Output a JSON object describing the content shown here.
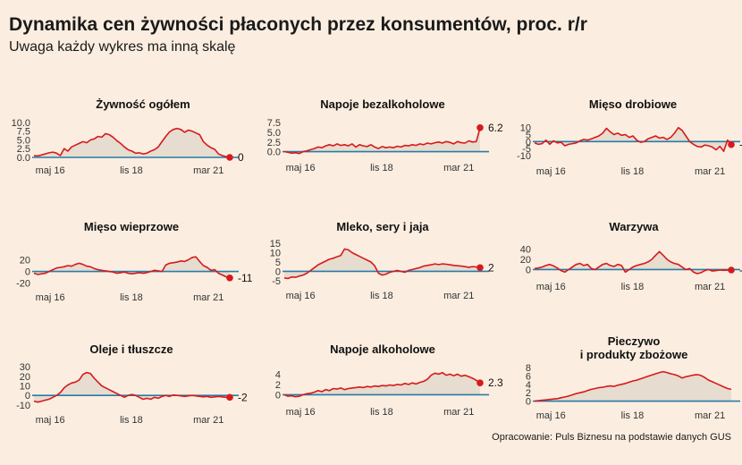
{
  "title": "Dynamika cen żywności płaconych przez konsumentów, proc. r/r",
  "subtitle": "Uwaga każdy wykres ma inną skalę",
  "source": "Opracowanie: Puls Biznesu na podstawie danych GUS",
  "colors": {
    "background": "#fbeee0",
    "line": "#d7191c",
    "area": "#e6dccf",
    "zero_line": "#2a7aa8"
  },
  "chart_data": [
    {
      "type": "area",
      "title": [
        "Żywność ogółem"
      ],
      "x_ticks": [
        "maj 16",
        "lis 18",
        "mar 21"
      ],
      "y_ticks": [
        10.0,
        7.5,
        5.0,
        2.5,
        0.0
      ],
      "ylim": [
        0,
        10.5
      ],
      "last_label": "0",
      "values": [
        0.5,
        0.4,
        0.7,
        1.0,
        1.3,
        1.5,
        1.2,
        0.5,
        2.5,
        1.8,
        3.0,
        3.5,
        4.0,
        4.5,
        4.2,
        5.0,
        5.3,
        6.0,
        5.8,
        6.8,
        6.5,
        5.8,
        4.8,
        4.0,
        3.0,
        2.2,
        1.8,
        1.2,
        1.3,
        1.0,
        1.2,
        1.8,
        2.2,
        3.0,
        4.5,
        6.0,
        7.3,
        8.0,
        8.3,
        8.0,
        7.2,
        7.8,
        7.5,
        7.0,
        6.5,
        4.5,
        3.5,
        2.8,
        2.3,
        1.0,
        0.5,
        0.2,
        0.0
      ]
    },
    {
      "type": "area",
      "title": [
        "Napoje bezalkoholowe"
      ],
      "x_ticks": [
        "maj 16",
        "lis 18",
        "mar 21"
      ],
      "y_ticks": [
        7.5,
        5.0,
        2.5,
        0.0
      ],
      "ylim": [
        -0.8,
        8
      ],
      "last_label": "6.2",
      "values": [
        0.0,
        -0.2,
        -0.4,
        -0.3,
        -0.5,
        0.0,
        0.2,
        0.5,
        0.8,
        1.2,
        1.0,
        1.5,
        1.8,
        1.5,
        2.0,
        1.6,
        1.8,
        1.5,
        2.0,
        1.2,
        1.8,
        1.5,
        1.3,
        1.8,
        1.2,
        0.8,
        1.3,
        1.0,
        1.2,
        1.0,
        1.4,
        1.2,
        1.6,
        1.5,
        1.8,
        1.6,
        2.0,
        1.8,
        2.2,
        2.0,
        2.3,
        2.5,
        2.2,
        2.6,
        2.4,
        2.0,
        2.6,
        2.3,
        2.2,
        2.8,
        2.5,
        2.6,
        6.2
      ]
    },
    {
      "type": "area",
      "title": [
        "Mięso drobiowe"
      ],
      "x_ticks": [
        "maj 16",
        "lis 18",
        "mar 21"
      ],
      "y_ticks": [
        10,
        5,
        0,
        -5,
        -10
      ],
      "ylim": [
        -12,
        13
      ],
      "last_label": "-2.2",
      "values": [
        -1.0,
        -2.0,
        -1.5,
        1.0,
        -2.0,
        0.5,
        -1.0,
        -0.5,
        -3.0,
        -2.0,
        -1.5,
        -1.0,
        0.5,
        1.5,
        1.0,
        2.0,
        3.0,
        4.0,
        6.0,
        9.5,
        7.0,
        5.0,
        6.0,
        4.5,
        5.0,
        3.0,
        4.0,
        1.0,
        -0.5,
        0.0,
        2.0,
        3.0,
        4.0,
        2.5,
        3.0,
        1.5,
        3.0,
        6.0,
        10.0,
        8.0,
        4.0,
        0.0,
        -2.0,
        -3.5,
        -4.0,
        -2.5,
        -3.0,
        -4.0,
        -6.0,
        -3.5,
        -7.0,
        1.0,
        -2.2
      ]
    },
    {
      "type": "area",
      "title": [
        "Mięso wieprzowe"
      ],
      "x_ticks": [
        "maj 16",
        "lis 18",
        "mar 21"
      ],
      "y_ticks": [
        20,
        0,
        -20
      ],
      "ylim": [
        -22,
        36
      ],
      "last_label": "-11",
      "values": [
        -3.0,
        -5.0,
        -4.0,
        -3.0,
        0.0,
        3.0,
        6.0,
        7.0,
        8.0,
        10.0,
        9.0,
        12.0,
        14.0,
        12.0,
        9.0,
        8.0,
        5.0,
        3.0,
        2.0,
        1.0,
        0.0,
        -1.0,
        -3.0,
        -2.0,
        -1.0,
        -3.0,
        -4.0,
        -3.0,
        -2.0,
        -3.0,
        -2.0,
        0.0,
        2.0,
        1.0,
        0.0,
        11.0,
        14.0,
        15.0,
        16.0,
        18.0,
        17.0,
        20.0,
        24.0,
        25.0,
        17.0,
        10.0,
        7.0,
        2.0,
        3.0,
        -3.0,
        -6.0,
        -9.0,
        -11.0
      ]
    },
    {
      "type": "area",
      "title": [
        "Mleko, sery i jaja"
      ],
      "x_ticks": [
        "maj 16",
        "lis 18",
        "mar 21"
      ],
      "y_ticks": [
        15,
        10,
        5,
        0,
        -5
      ],
      "ylim": [
        -6,
        16
      ],
      "last_label": "2",
      "values": [
        -3.5,
        -3.8,
        -3.0,
        -3.2,
        -2.5,
        -2.0,
        -1.0,
        0.5,
        2.0,
        3.5,
        4.5,
        5.5,
        6.5,
        7.0,
        7.8,
        8.5,
        12.0,
        11.5,
        10.0,
        9.0,
        8.0,
        7.0,
        6.0,
        5.0,
        3.0,
        -1.0,
        -2.0,
        -1.5,
        -0.5,
        0.0,
        0.5,
        0.0,
        -0.5,
        0.5,
        1.0,
        1.5,
        2.0,
        2.8,
        3.2,
        3.5,
        4.0,
        3.6,
        4.0,
        3.8,
        3.5,
        3.2,
        3.0,
        2.8,
        2.5,
        2.2,
        2.5,
        2.3,
        2.0
      ]
    },
    {
      "type": "area",
      "title": [
        "Warzywa"
      ],
      "x_ticks": [
        "maj 16",
        "lis 18",
        "mar 21"
      ],
      "y_ticks": [
        40,
        20,
        0
      ],
      "ylim": [
        -8,
        48
      ],
      "last_label": "-1",
      "values": [
        2.0,
        3.0,
        5.0,
        8.0,
        10.0,
        7.0,
        3.0,
        -2.0,
        -5.0,
        0.0,
        5.0,
        10.0,
        12.0,
        8.0,
        10.0,
        2.0,
        0.0,
        5.0,
        10.0,
        12.0,
        8.0,
        6.0,
        10.0,
        8.0,
        -5.0,
        0.0,
        5.0,
        8.0,
        10.0,
        12.0,
        15.0,
        20.0,
        28.0,
        35.0,
        28.0,
        20.0,
        15.0,
        12.0,
        10.0,
        5.0,
        0.0,
        2.0,
        -5.0,
        -8.0,
        -6.0,
        -2.0,
        0.0,
        -3.0,
        -2.0,
        -1.0,
        -1.5,
        -1.2,
        -1.0
      ]
    },
    {
      "type": "area",
      "title": [
        "Oleje i tłuszcze"
      ],
      "x_ticks": [
        "maj 16",
        "lis 18",
        "mar 21"
      ],
      "y_ticks": [
        30,
        20,
        10,
        0,
        -10
      ],
      "ylim": [
        -12,
        33
      ],
      "last_label": "-2",
      "values": [
        -6.0,
        -7.0,
        -6.0,
        -5.0,
        -4.0,
        -2.0,
        0.0,
        3.0,
        8.0,
        11.0,
        13.0,
        14.0,
        16.0,
        22.0,
        24.0,
        23.0,
        18.0,
        14.0,
        10.0,
        8.0,
        6.0,
        4.0,
        2.0,
        0.0,
        -2.0,
        0.0,
        1.0,
        0.0,
        -2.0,
        -4.0,
        -3.0,
        -4.0,
        -2.0,
        -3.0,
        -1.0,
        0.0,
        -1.0,
        0.5,
        0.0,
        -0.5,
        -1.0,
        -0.5,
        0.0,
        -0.5,
        -1.0,
        -1.5,
        -1.0,
        -2.0,
        -1.5,
        -1.0,
        -1.5,
        -2.0,
        -2.0
      ]
    },
    {
      "type": "area",
      "title": [
        "Napoje alkoholowe"
      ],
      "x_ticks": [
        "maj 16",
        "lis 18",
        "mar 21"
      ],
      "y_ticks": [
        4,
        2,
        0
      ],
      "ylim": [
        -0.8,
        4.6
      ],
      "last_label": "2.3",
      "values": [
        0.0,
        -0.3,
        -0.2,
        -0.4,
        -0.3,
        0.0,
        0.2,
        0.3,
        0.5,
        0.8,
        0.6,
        1.0,
        0.8,
        1.2,
        1.1,
        1.3,
        1.0,
        1.2,
        1.3,
        1.4,
        1.5,
        1.4,
        1.6,
        1.5,
        1.7,
        1.6,
        1.8,
        1.7,
        1.9,
        1.8,
        2.0,
        1.9,
        2.2,
        2.0,
        2.3,
        2.1,
        2.4,
        2.6,
        3.0,
        3.8,
        4.2,
        4.0,
        4.3,
        3.8,
        4.0,
        3.7,
        4.0,
        3.6,
        3.8,
        3.5,
        3.2,
        2.8,
        2.3
      ]
    },
    {
      "type": "area",
      "title": [
        "Pieczywo",
        "i produkty zbożowe"
      ],
      "x_ticks": [
        "maj 16",
        "lis 18",
        "mar 21"
      ],
      "y_ticks": [
        8,
        6,
        4,
        2,
        0
      ],
      "ylim": [
        -0.3,
        8.2
      ],
      "last_label": "",
      "values": [
        0.0,
        0.1,
        0.2,
        0.3,
        0.4,
        0.5,
        0.6,
        0.8,
        1.0,
        1.2,
        1.5,
        1.8,
        2.0,
        2.2,
        2.5,
        2.8,
        3.0,
        3.2,
        3.3,
        3.5,
        3.6,
        3.5,
        3.8,
        4.0,
        4.2,
        4.5,
        4.8,
        5.0,
        5.3,
        5.6,
        5.9,
        6.2,
        6.5,
        6.8,
        7.0,
        6.8,
        6.5,
        6.3,
        6.0,
        5.5,
        5.8,
        6.0,
        6.2,
        6.3,
        6.1,
        5.6,
        5.0,
        4.6,
        4.2,
        3.8,
        3.4,
        3.0,
        2.8
      ]
    }
  ]
}
